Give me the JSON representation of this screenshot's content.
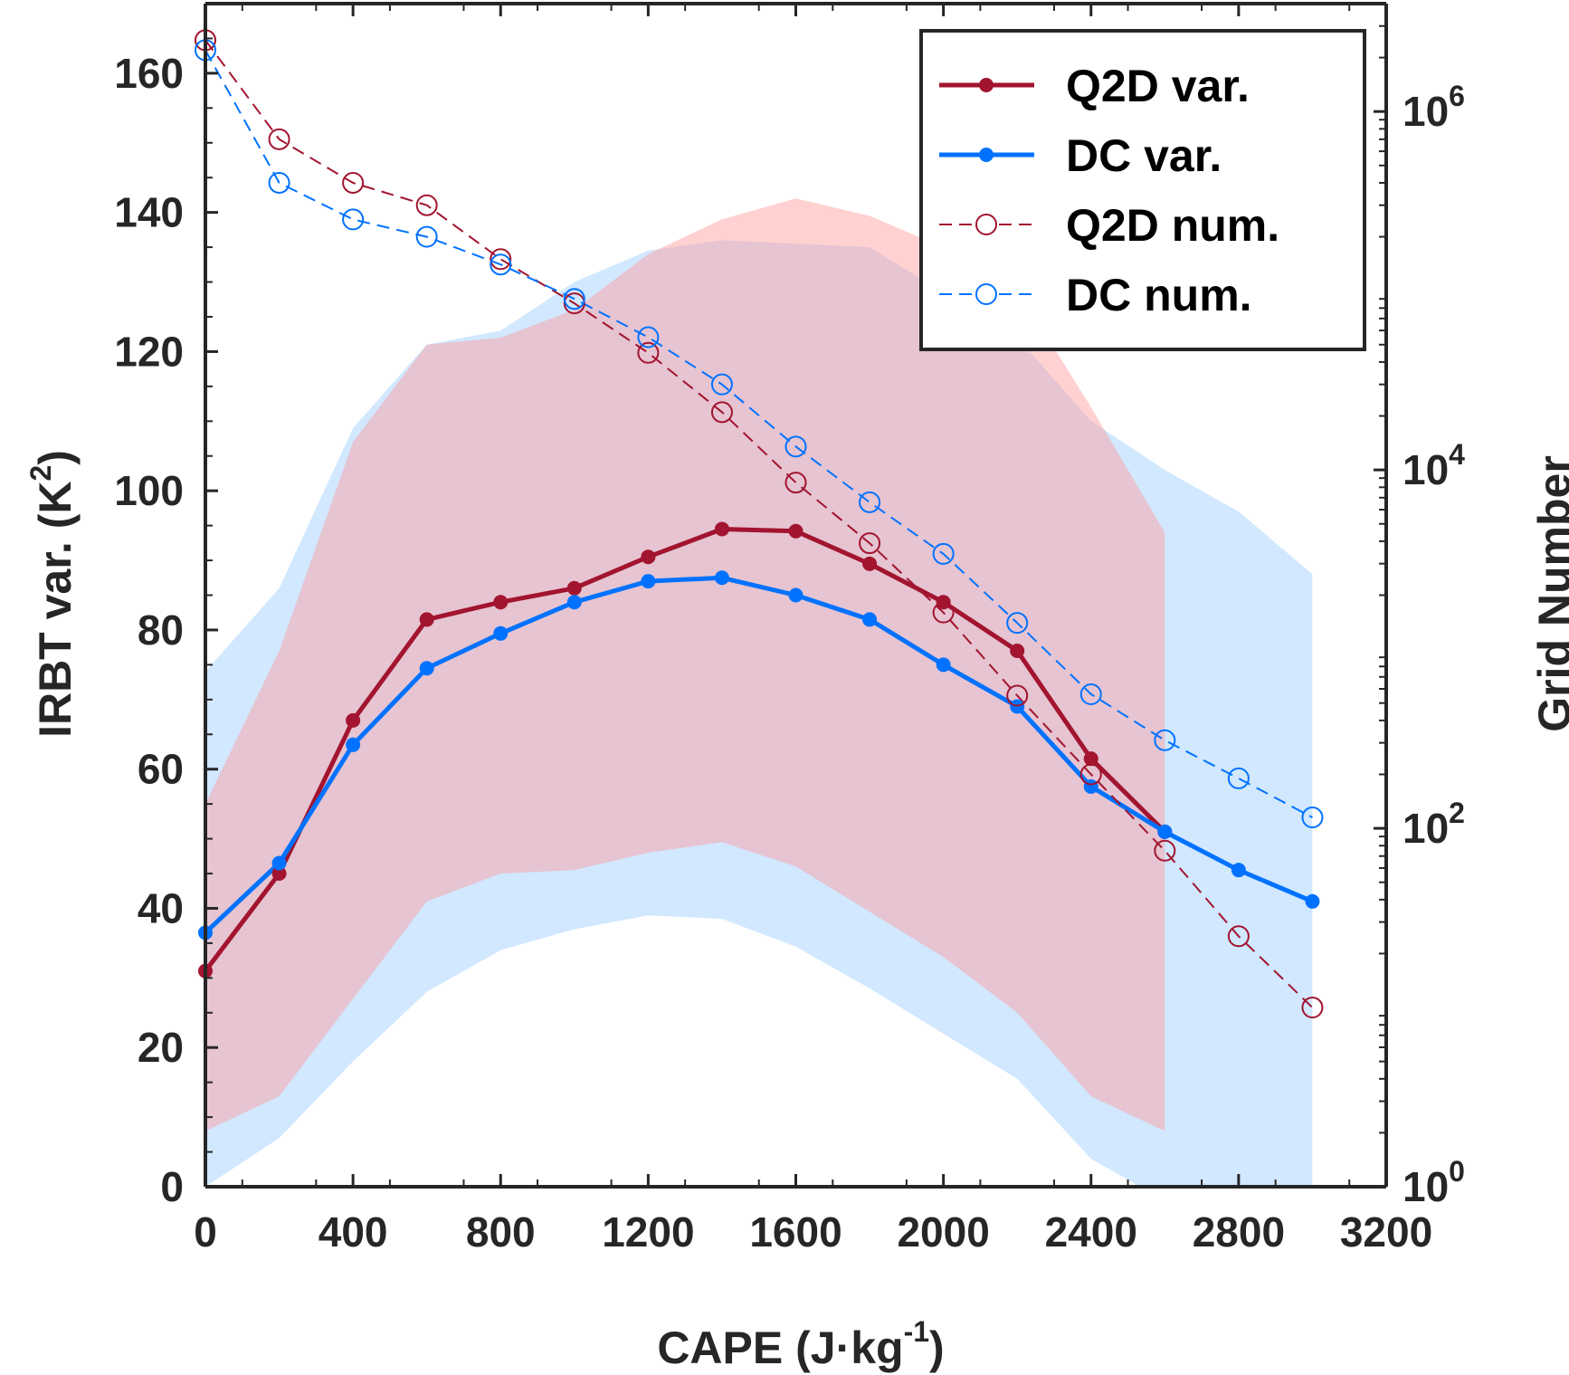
{
  "chart_data": {
    "type": "line",
    "xlabel": "CAPE (J·kg",
    "xlabel_sup": "-1",
    "xlabel_end": ")",
    "ylabel": "IRBT var. (K",
    "ylabel_sup": "2",
    "ylabel_end": ")",
    "y2label": "Grid Number",
    "xlim": [
      0,
      3200
    ],
    "ylim": [
      0,
      170
    ],
    "y2lim": [
      1,
      4000000
    ],
    "y2scale": "log",
    "grid": false,
    "legend_position": "top-right",
    "x_ticks": [
      "0",
      "400",
      "800",
      "1200",
      "1600",
      "2000",
      "2400",
      "2800",
      "3200"
    ],
    "y_ticks": [
      "0",
      "20",
      "40",
      "60",
      "80",
      "100",
      "120",
      "140",
      "160"
    ],
    "y2_ticks": [
      {
        "base": "10",
        "exp": "0"
      },
      {
        "base": "10",
        "exp": "2"
      },
      {
        "base": "10",
        "exp": "4"
      },
      {
        "base": "10",
        "exp": "6"
      }
    ],
    "x": [
      0,
      200,
      400,
      600,
      800,
      1000,
      1200,
      1400,
      1600,
      1800,
      2000,
      2200,
      2400,
      2600,
      2800,
      3000
    ],
    "series": [
      {
        "name": "Q2D var.",
        "axis": "left",
        "style": "solid-dot",
        "color": "#a2142f",
        "x": [
          0,
          200,
          400,
          600,
          800,
          1000,
          1200,
          1400,
          1600,
          1800,
          2000,
          2200,
          2400,
          2600
        ],
        "values": [
          31,
          45,
          67,
          81.5,
          84,
          86,
          90.5,
          94.5,
          94.2,
          89.5,
          84,
          77,
          61.5,
          51
        ]
      },
      {
        "name": "DC var.",
        "axis": "left",
        "style": "solid-dot",
        "color": "#0072ff",
        "x": [
          0,
          200,
          400,
          600,
          800,
          1000,
          1200,
          1400,
          1600,
          1800,
          2000,
          2200,
          2400,
          2600,
          2800,
          3000
        ],
        "values": [
          36.5,
          46.5,
          63.5,
          74.5,
          79.5,
          84,
          87,
          87.5,
          85,
          81.5,
          75,
          69,
          57.5,
          51,
          45.5,
          41
        ]
      },
      {
        "name": "Q2D num.",
        "axis": "right",
        "style": "dashed-circle",
        "color": "#a2142f",
        "x": [
          0,
          200,
          400,
          600,
          800,
          1000,
          1200,
          1400,
          1600,
          1800,
          2000,
          2200,
          2400,
          2600,
          2800,
          3000
        ],
        "values": [
          2500000,
          700000,
          400000,
          300000,
          150000,
          85000,
          45000,
          21000,
          8500,
          3900,
          1600,
          550,
          200,
          75,
          25,
          10
        ]
      },
      {
        "name": "DC num.",
        "axis": "right",
        "style": "dashed-circle",
        "color": "#0072ff",
        "x": [
          0,
          200,
          400,
          600,
          800,
          1000,
          1200,
          1400,
          1600,
          1800,
          2000,
          2200,
          2400,
          2600,
          2800,
          3000
        ],
        "values": [
          2200000,
          400000,
          250000,
          200000,
          140000,
          90000,
          55000,
          30000,
          13500,
          6600,
          3400,
          1400,
          560,
          310,
          190,
          115
        ]
      }
    ],
    "bands": [
      {
        "of": "DC var.",
        "color": "#b3d9ff",
        "opacity": 0.6,
        "x": [
          0,
          200,
          400,
          600,
          800,
          1000,
          1200,
          1400,
          1600,
          1800,
          2000,
          2200,
          2400,
          2600,
          2800,
          3000
        ],
        "lower": [
          0,
          7,
          18,
          28,
          34,
          37,
          39,
          38.5,
          34.5,
          28.5,
          22,
          15.5,
          4,
          -2,
          -11,
          -16
        ],
        "upper": [
          74,
          86,
          109,
          121,
          123,
          130,
          134.5,
          136,
          135.5,
          135,
          128.5,
          122,
          110,
          103,
          97,
          88
        ]
      },
      {
        "of": "Q2D var.",
        "color": "#ff9999",
        "opacity": 0.45,
        "x": [
          0,
          200,
          400,
          600,
          800,
          1000,
          1200,
          1400,
          1600,
          1800,
          2000,
          2200,
          2400,
          2600
        ],
        "lower": [
          8,
          13,
          27,
          41,
          45,
          45.5,
          48,
          49.5,
          46,
          39.5,
          33,
          25,
          13,
          8
        ],
        "upper": [
          55,
          77,
          107,
          121,
          122,
          126,
          134,
          139,
          142,
          139.5,
          135,
          129,
          112,
          94
        ]
      }
    ]
  }
}
